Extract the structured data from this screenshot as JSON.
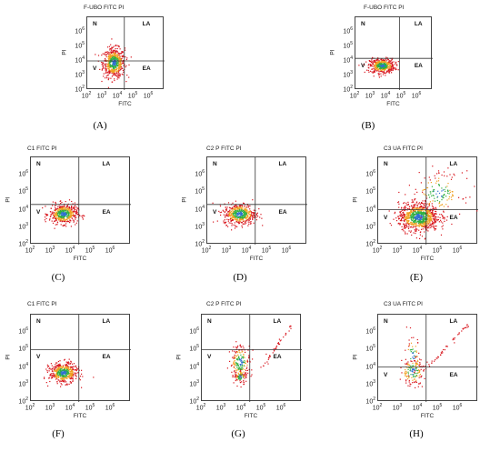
{
  "figure": {
    "panels": [
      {
        "id": "A",
        "label": "(A)",
        "title": "F-UBO FITC PI",
        "xlabel": "FITC",
        "ylabel": "PI",
        "quadrants": {
          "N": "N",
          "LA": "LA",
          "V": "V",
          "EA": "EA"
        }
      },
      {
        "id": "B",
        "label": "(B)",
        "title": "F-UBO FITC PI",
        "xlabel": "FITC",
        "ylabel": "PI",
        "quadrants": {
          "N": "N",
          "LA": "LA",
          "V": "V",
          "EA": "EA"
        }
      },
      {
        "id": "C",
        "label": "(C)",
        "title": "C1 FITC PI",
        "xlabel": "FITC",
        "ylabel": "PI",
        "quadrants": {
          "N": "N",
          "LA": "LA",
          "V": "V",
          "EA": "EA"
        }
      },
      {
        "id": "D",
        "label": "(D)",
        "title": "C2 P FITC PI",
        "xlabel": "FITC",
        "ylabel": "PI",
        "quadrants": {
          "N": "N",
          "LA": "LA",
          "V": "V",
          "EA": "EA"
        }
      },
      {
        "id": "E",
        "label": "(E)",
        "title": "C3 UA FITC PI",
        "xlabel": "FITC",
        "ylabel": "PI",
        "quadrants": {
          "N": "N",
          "LA": "LA",
          "V": "V",
          "EA": "EA"
        }
      },
      {
        "id": "F",
        "label": "(F)",
        "title": "C1 FITC PI",
        "xlabel": "FITC",
        "ylabel": "PI",
        "quadrants": {
          "N": "N",
          "LA": "LA",
          "V": "V",
          "EA": "EA"
        }
      },
      {
        "id": "G",
        "label": "(G)",
        "title": "C2 P FITC PI",
        "xlabel": "FITC",
        "ylabel": "PI",
        "quadrants": {
          "N": "N",
          "LA": "LA",
          "V": "V",
          "EA": "EA"
        }
      },
      {
        "id": "H",
        "label": "(H)",
        "title": "C3 UA FITC PI",
        "xlabel": "FITC",
        "ylabel": "PI",
        "quadrants": {
          "N": "N",
          "LA": "LA",
          "V": "V",
          "EA": "EA"
        }
      }
    ],
    "tick_labels": [
      "10",
      "10",
      "10",
      "10",
      "10"
    ],
    "tick_exponents": [
      "2",
      "3",
      "4",
      "5",
      "6"
    ]
  },
  "colors": {
    "low": "#d8141c",
    "mid": "#f0a020",
    "high": "#30b040",
    "peak": "#3070d0",
    "axis": "#444444",
    "gate": "#333333"
  },
  "chart_data": [
    {
      "type": "scatter",
      "panel": "A",
      "title": "F-UBO FITC PI",
      "xlabel": "FITC",
      "ylabel": "PI",
      "xscale": "log",
      "yscale": "log",
      "xlim": [
        100,
        10000000
      ],
      "ylim": [
        100,
        10000000
      ],
      "x_ticks": [
        100,
        1000,
        10000,
        100000,
        1000000
      ],
      "y_ticks": [
        100,
        1000,
        10000,
        100000,
        1000000
      ],
      "gates": {
        "x": 25000,
        "y": 10000
      },
      "clusters": [
        {
          "cx": 5000,
          "cy": 8000,
          "sx": 0.35,
          "sy": 0.5,
          "n": 600
        }
      ]
    },
    {
      "type": "scatter",
      "panel": "B",
      "title": "F-UBO FITC PI",
      "xlabel": "FITC",
      "ylabel": "PI",
      "xscale": "log",
      "yscale": "log",
      "xlim": [
        100,
        10000000
      ],
      "ylim": [
        100,
        10000000
      ],
      "x_ticks": [
        100,
        1000,
        10000,
        100000,
        1000000
      ],
      "y_ticks": [
        100,
        1000,
        10000,
        100000,
        1000000
      ],
      "gates": {
        "x": 70000,
        "y": 15000
      },
      "clusters": [
        {
          "cx": 5000,
          "cy": 5000,
          "sx": 0.4,
          "sy": 0.25,
          "n": 500
        }
      ]
    },
    {
      "type": "scatter",
      "panel": "C",
      "title": "C1 FITC PI",
      "xlabel": "FITC",
      "ylabel": "PI",
      "xscale": "log",
      "yscale": "log",
      "xlim": [
        100,
        10000000
      ],
      "ylim": [
        100,
        10000000
      ],
      "x_ticks": [
        100,
        1000,
        10000,
        100000,
        1000000
      ],
      "y_ticks": [
        100,
        1000,
        10000,
        100000,
        1000000
      ],
      "gates": {
        "x": 25000,
        "y": 20000
      },
      "clusters": [
        {
          "cx": 4000,
          "cy": 6000,
          "sx": 0.35,
          "sy": 0.28,
          "n": 500
        }
      ]
    },
    {
      "type": "scatter",
      "panel": "D",
      "title": "C2 P FITC PI",
      "xlabel": "FITC",
      "ylabel": "PI",
      "xscale": "log",
      "yscale": "log",
      "xlim": [
        100,
        10000000
      ],
      "ylim": [
        100,
        10000000
      ],
      "x_ticks": [
        100,
        1000,
        10000,
        100000,
        1000000
      ],
      "y_ticks": [
        100,
        1000,
        10000,
        100000,
        1000000
      ],
      "gates": {
        "x": 25000,
        "y": 20000
      },
      "clusters": [
        {
          "cx": 4000,
          "cy": 6000,
          "sx": 0.4,
          "sy": 0.3,
          "n": 500
        }
      ]
    },
    {
      "type": "scatter",
      "panel": "E",
      "title": "C3 UA FITC PI",
      "xlabel": "FITC",
      "ylabel": "PI",
      "xscale": "log",
      "yscale": "log",
      "xlim": [
        100,
        10000000
      ],
      "ylim": [
        100,
        10000000
      ],
      "x_ticks": [
        100,
        1000,
        10000,
        100000,
        1000000
      ],
      "y_ticks": [
        100,
        1000,
        10000,
        100000,
        1000000
      ],
      "gates": {
        "x": 25000,
        "y": 10000
      },
      "clusters": [
        {
          "cx": 10000,
          "cy": 4000,
          "sx": 0.5,
          "sy": 0.4,
          "n": 900
        },
        {
          "cx": 100000,
          "cy": 100000,
          "sx": 0.6,
          "sy": 0.6,
          "n": 150
        }
      ]
    },
    {
      "type": "scatter",
      "panel": "F",
      "title": "C1 FITC PI",
      "xlabel": "FITC",
      "ylabel": "PI",
      "xscale": "log",
      "yscale": "log",
      "xlim": [
        100,
        10000000
      ],
      "ylim": [
        100,
        10000000
      ],
      "x_ticks": [
        100,
        1000,
        10000,
        100000,
        1000000
      ],
      "y_ticks": [
        100,
        1000,
        10000,
        100000,
        1000000
      ],
      "gates": {
        "x": 25000,
        "y": 100000
      },
      "clusters": [
        {
          "cx": 4000,
          "cy": 5000,
          "sx": 0.35,
          "sy": 0.28,
          "n": 500
        }
      ]
    },
    {
      "type": "scatter",
      "panel": "G",
      "title": "C2 P FITC PI",
      "xlabel": "FITC",
      "ylabel": "PI",
      "xscale": "log",
      "yscale": "log",
      "xlim": [
        100,
        10000000
      ],
      "ylim": [
        100,
        10000000
      ],
      "x_ticks": [
        100,
        1000,
        10000,
        100000,
        1000000
      ],
      "y_ticks": [
        100,
        1000,
        10000,
        100000,
        1000000
      ],
      "gates": {
        "x": 25000,
        "y": 100000
      },
      "clusters": [
        {
          "cx": 8000,
          "cy": 20000,
          "sx": 0.25,
          "sy": 0.5,
          "n": 200
        },
        {
          "cx": 8000,
          "cy": 3000,
          "sx": 0.15,
          "sy": 0.2,
          "n": 60
        }
      ],
      "diagonal": {
        "from": [
          100000,
          10000
        ],
        "to": [
          3000000,
          3000000
        ],
        "n": 40
      }
    },
    {
      "type": "scatter",
      "panel": "H",
      "title": "C3 UA FITC PI",
      "xlabel": "FITC",
      "ylabel": "PI",
      "xscale": "log",
      "yscale": "log",
      "xlim": [
        100,
        10000000
      ],
      "ylim": [
        100,
        10000000
      ],
      "x_ticks": [
        100,
        1000,
        10000,
        100000,
        1000000
      ],
      "y_ticks": [
        100,
        1000,
        10000,
        100000,
        1000000
      ],
      "gates": {
        "x": 25000,
        "y": 10000
      },
      "clusters": [
        {
          "cx": 5000,
          "cy": 6000,
          "sx": 0.3,
          "sy": 0.4,
          "n": 150
        },
        {
          "cx": 5000,
          "cy": 40000,
          "sx": 0.2,
          "sy": 0.6,
          "n": 50
        }
      ],
      "diagonal": {
        "from": [
          30000,
          10000
        ],
        "to": [
          3000000,
          3000000
        ],
        "n": 40
      }
    }
  ]
}
